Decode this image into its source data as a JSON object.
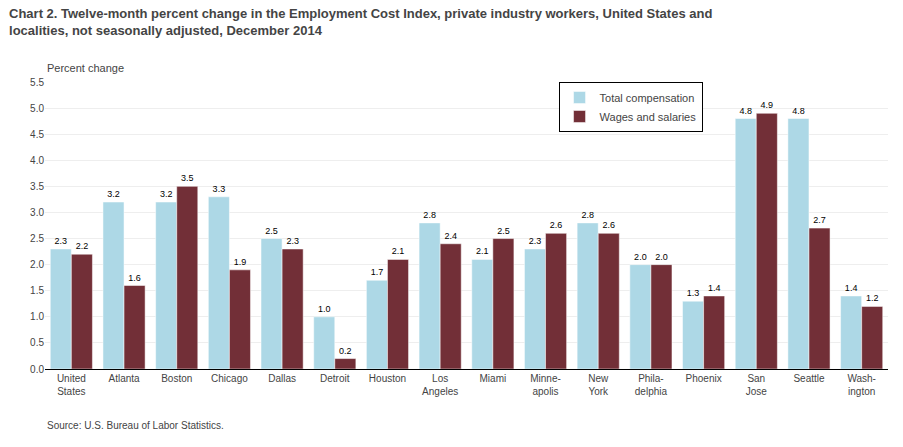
{
  "chart_data": {
    "type": "bar",
    "title": "Chart 2. Twelve-month percent change in the Employment Cost Index, private industry workers, United States and\nlocalities, not seasonally adjusted, December 2014",
    "ylabel": "Percent change",
    "annotations": [
      "Source: U.S. Bureau of Labor Statistics."
    ],
    "categories": [
      "United\nStates",
      "Atlanta",
      "Boston",
      "Chicago",
      "Dallas",
      "Detroit",
      "Houston",
      "Los\nAngeles",
      "Miami",
      "Minne-\napolis",
      "New\nYork",
      "Phila-\ndelphia",
      "Phoenix",
      "San\nJose",
      "Seattle",
      "Wash-\nington"
    ],
    "series": [
      {
        "name": "Total compensation",
        "color": "#add8e6",
        "values": [
          2.3,
          3.2,
          3.2,
          3.3,
          2.5,
          1.0,
          1.7,
          2.8,
          2.1,
          2.3,
          2.8,
          2.0,
          1.3,
          4.8,
          4.8,
          1.4
        ],
        "value_labels": [
          "2.3",
          "3.2",
          "3.2",
          "3.3",
          "2.5",
          "1.0",
          "1.7",
          "2.8",
          "2.1",
          "2.3",
          "2.8",
          "2.0",
          "1.3",
          "4.8",
          "4.8",
          "1.4"
        ]
      },
      {
        "name": "Wages and salaries",
        "color": "#722f37",
        "values": [
          2.2,
          1.6,
          3.5,
          1.9,
          2.3,
          0.2,
          2.1,
          2.4,
          2.5,
          2.6,
          2.6,
          2.0,
          1.4,
          4.9,
          2.7,
          1.2
        ],
        "value_labels": [
          "2.2",
          "1.6",
          "3.5",
          "1.9",
          "2.3",
          "0.2",
          "2.1",
          "2.4",
          "2.5",
          "2.6",
          "2.6",
          "2.0",
          "1.4",
          "4.9",
          "2.7",
          "1.2"
        ]
      }
    ],
    "ylim": [
      0,
      5.5
    ],
    "yticks": [
      {
        "value": 0.0,
        "label": "0.0"
      },
      0.5,
      {
        "value": 1.0,
        "label": "1.0"
      },
      1.5,
      {
        "value": 2.0,
        "label": "2.0"
      },
      2.5,
      {
        "value": 3.0,
        "label": "3.0"
      },
      3.5,
      {
        "value": 4.0,
        "label": "4.0"
      },
      4.5,
      {
        "value": 5.0,
        "label": "5.0"
      },
      5.5
    ],
    "grid": true,
    "legend": "upper right",
    "data_labels": true
  }
}
